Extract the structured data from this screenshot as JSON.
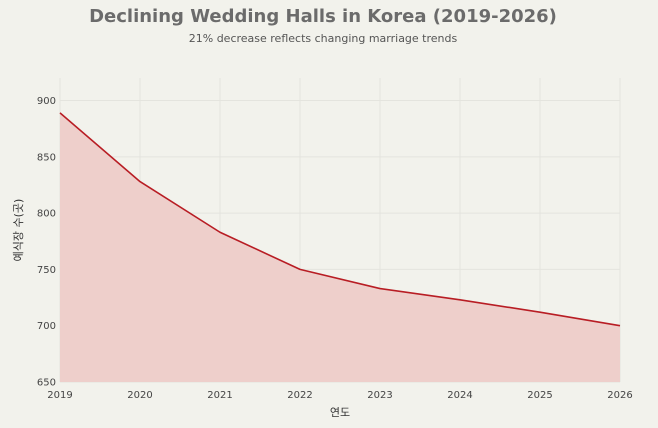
{
  "chart_data": {
    "type": "area",
    "title": "Declining Wedding Halls in Korea (2019-2026)",
    "subtitle": "21% decrease reflects changing marriage trends",
    "xlabel": "연도",
    "ylabel": "예식장 수(곳)",
    "x": [
      2019,
      2020,
      2021,
      2022,
      2023,
      2024,
      2025,
      2026
    ],
    "series": [
      {
        "values": [
          889,
          828,
          783,
          750,
          733,
          723,
          712,
          700
        ]
      }
    ],
    "xlim": [
      2019,
      2026
    ],
    "ylim": [
      650,
      920
    ],
    "yticks": [
      650,
      700,
      750,
      800,
      850,
      900
    ],
    "xticks": [
      2019,
      2020,
      2021,
      2022,
      2023,
      2024,
      2025,
      2026
    ],
    "grid": true,
    "colors": {
      "line": "#b81d24",
      "fill": "#eecfcb",
      "grid": "#e4e4de"
    }
  }
}
